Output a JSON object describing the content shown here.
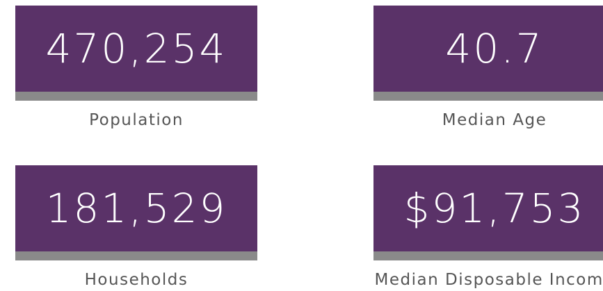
{
  "cards": [
    {
      "value": "470,254",
      "label": "Population"
    },
    {
      "value": "40.7",
      "label": "Median Age"
    },
    {
      "value": "181,529",
      "label": "Households"
    },
    {
      "value": "$91,753",
      "label": "Median Disposable Income"
    }
  ]
}
